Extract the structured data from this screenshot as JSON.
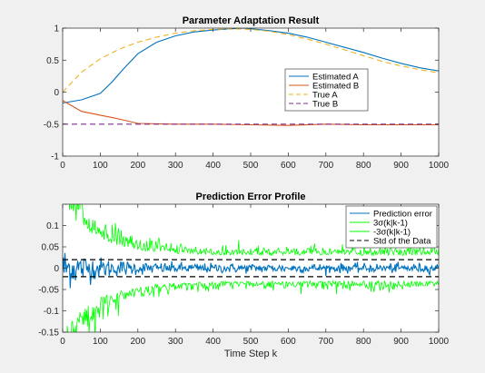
{
  "chart_data": [
    {
      "type": "line",
      "title": "Parameter Adaptation Result",
      "xlabel": "",
      "ylabel": "",
      "xlim": [
        0,
        1000
      ],
      "ylim": [
        -1,
        1
      ],
      "xticks": [
        "0",
        "100",
        "200",
        "300",
        "400",
        "500",
        "600",
        "700",
        "800",
        "900",
        "1000"
      ],
      "yticks": [
        "-1",
        "-0.5",
        "0",
        "0.5",
        "1"
      ],
      "grid": false,
      "legend_position": "center-right",
      "series": [
        {
          "name": "Estimated A",
          "color": "#0072bd",
          "style": "solid",
          "x": [
            0,
            50,
            100,
            130,
            160,
            200,
            250,
            300,
            350,
            400,
            450,
            480,
            500,
            550,
            600,
            650,
            700,
            750,
            800,
            850,
            900,
            950,
            1000
          ],
          "y": [
            -0.17,
            -0.12,
            -0.02,
            0.15,
            0.35,
            0.6,
            0.78,
            0.88,
            0.94,
            0.97,
            0.99,
            1.0,
            0.99,
            0.96,
            0.92,
            0.86,
            0.78,
            0.7,
            0.62,
            0.53,
            0.45,
            0.38,
            0.33
          ]
        },
        {
          "name": "Estimated B",
          "color": "#d95319",
          "style": "solid",
          "x": [
            0,
            50,
            100,
            150,
            200,
            300,
            400,
            500,
            600,
            700,
            800,
            900,
            1000
          ],
          "y": [
            -0.13,
            -0.3,
            -0.36,
            -0.42,
            -0.49,
            -0.5,
            -0.5,
            -0.51,
            -0.52,
            -0.5,
            -0.51,
            -0.51,
            -0.51
          ]
        },
        {
          "name": "True A",
          "color": "#edb120",
          "style": "dashed",
          "x": [
            0,
            50,
            100,
            150,
            200,
            250,
            300,
            350,
            400,
            450,
            500,
            550,
            600,
            650,
            700,
            750,
            800,
            850,
            900,
            950,
            1000
          ],
          "y": [
            0.0,
            0.31,
            0.52,
            0.67,
            0.78,
            0.86,
            0.92,
            0.96,
            0.98,
            0.99,
            0.98,
            0.95,
            0.9,
            0.83,
            0.75,
            0.66,
            0.57,
            0.48,
            0.41,
            0.35,
            0.3
          ]
        },
        {
          "name": "True B",
          "color": "#7e2f8e",
          "style": "dashed",
          "x": [
            0,
            1000
          ],
          "y": [
            -0.5,
            -0.5
          ]
        }
      ]
    },
    {
      "type": "line",
      "title": "Prediction Error Profile",
      "xlabel": "Time Step k",
      "ylabel": "",
      "xlim": [
        0,
        1000
      ],
      "ylim": [
        -0.15,
        0.15
      ],
      "xticks": [
        "0",
        "100",
        "200",
        "300",
        "400",
        "500",
        "600",
        "700",
        "800",
        "900",
        "1000"
      ],
      "yticks": [
        "-0.15",
        "-0.1",
        "-0.05",
        "0",
        "0.05",
        "0.1"
      ],
      "grid": false,
      "legend_position": "top-right",
      "series": [
        {
          "name": "Prediction error",
          "color": "#0072bd",
          "style": "solid",
          "approx_amplitude": [
            0.06,
            0.012
          ]
        },
        {
          "name": "3σ(k|k-1)",
          "color": "#00ff00",
          "style": "solid",
          "approx_envelope": [
            0.15,
            0.03
          ]
        },
        {
          "name": "-3σ(k|k-1)",
          "color": "#00ff00",
          "style": "solid",
          "approx_envelope": [
            -0.15,
            -0.03
          ]
        },
        {
          "name": "Std of the Data",
          "color": "#000000",
          "style": "dashed",
          "x": [
            0,
            1000
          ],
          "y_pos": 0.02,
          "y_neg": -0.02
        }
      ]
    }
  ]
}
